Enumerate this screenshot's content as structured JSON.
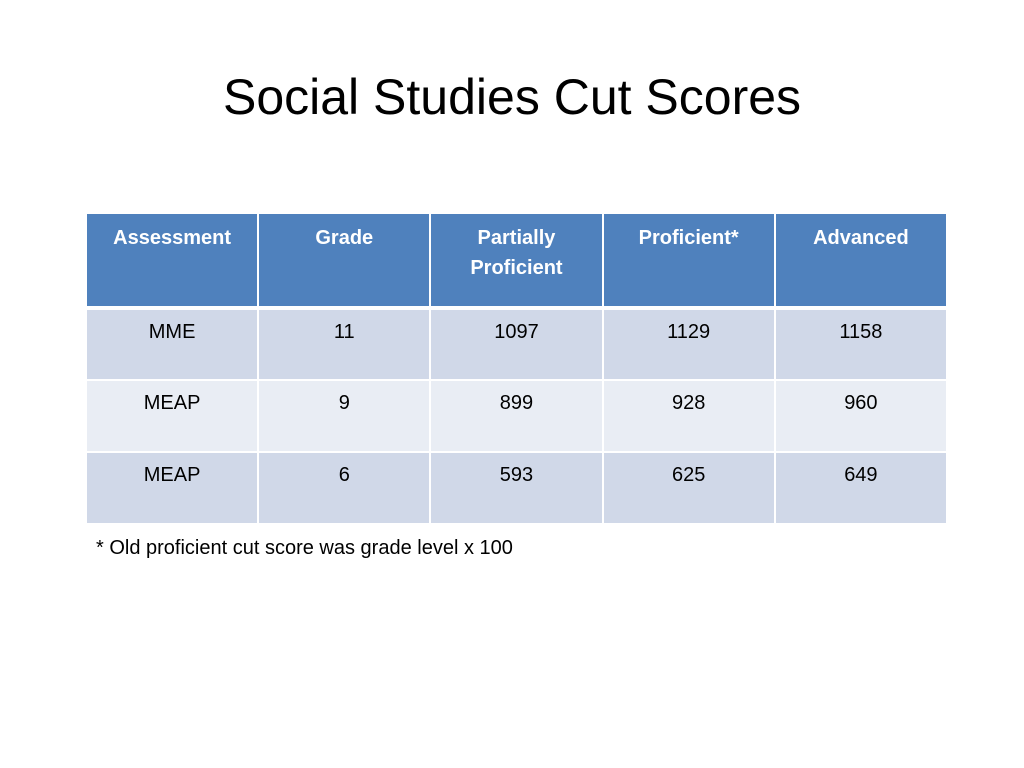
{
  "slide": {
    "title": "Social Studies Cut Scores",
    "footnote": "* Old proficient cut score was grade level x 100"
  },
  "table": {
    "headers": [
      "Assessment",
      "Grade",
      "Partially Proficient",
      "Proficient*",
      "Advanced"
    ],
    "rows": [
      [
        "MME",
        "11",
        "1097",
        "1129",
        "1158"
      ],
      [
        "MEAP",
        "9",
        "899",
        "928",
        "960"
      ],
      [
        "MEAP",
        "6",
        "593",
        "625",
        "649"
      ]
    ],
    "colors": {
      "header_bg": "#4f81bd",
      "row_odd_bg": "#d0d8e8",
      "row_even_bg": "#e9edf4"
    }
  }
}
